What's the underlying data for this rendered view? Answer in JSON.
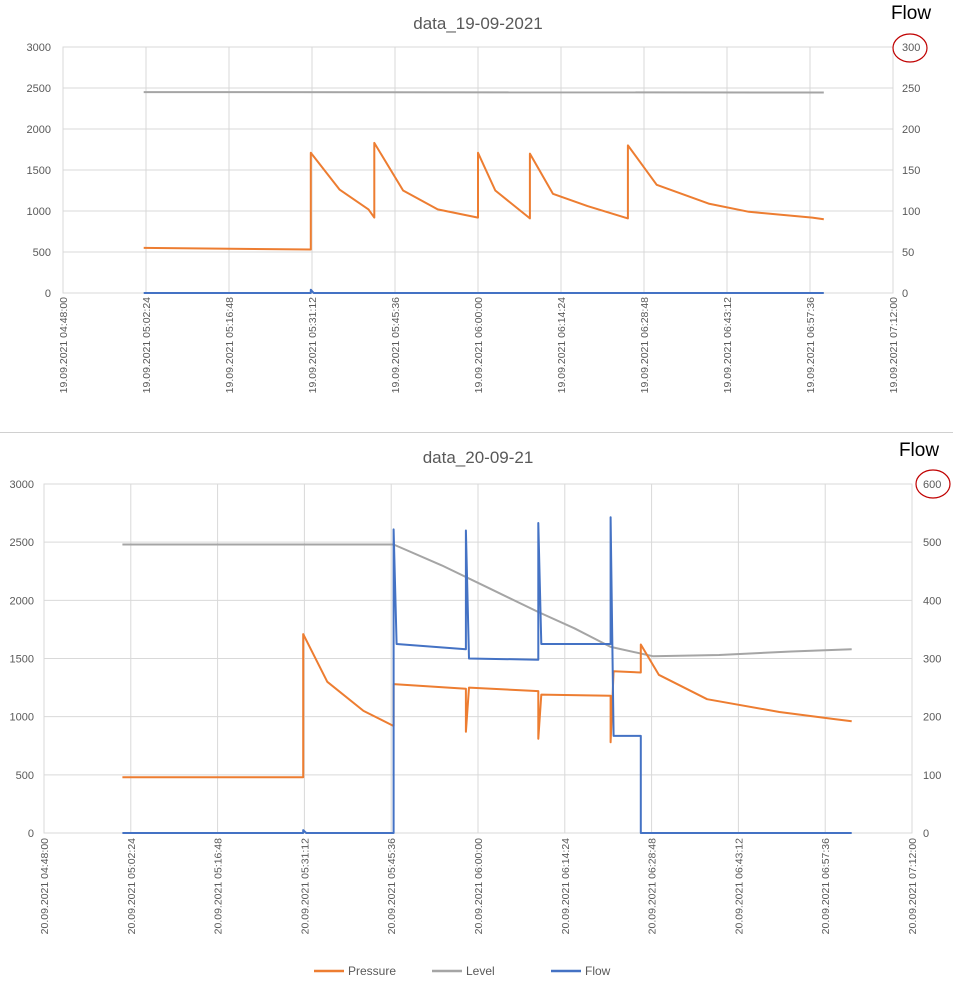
{
  "chart_data": [
    {
      "type": "line",
      "title": "data_19-09-2021",
      "right_axis_title": "Flow",
      "y_left": {
        "lim": [
          0,
          3000
        ],
        "ticks": [
          0,
          500,
          1000,
          1500,
          2000,
          2500,
          3000
        ]
      },
      "y_right": {
        "lim": [
          0,
          300
        ],
        "ticks": [
          0,
          50,
          100,
          150,
          200,
          250,
          300
        ]
      },
      "x_tick_labels": [
        "19.09.2021 04:48:00",
        "19.09.2021 05:02:24",
        "19.09.2021 05:16:48",
        "19.09.2021 05:31:12",
        "19.09.2021 05:45:36",
        "19.09.2021 06:00:00",
        "19.09.2021 06:14:24",
        "19.09.2021 06:28:48",
        "19.09.2021 06:43:12",
        "19.09.2021 06:57:36",
        "19.09.2021 07:12:00"
      ],
      "grid": true,
      "annotation": {
        "note": "red circle around top right axis tick",
        "tick": 300
      },
      "series": [
        {
          "name": "Pressure",
          "color": "#ED7D31",
          "axis": "left",
          "points": [
            [
              "19.09.2021 05:02:00",
              550
            ],
            [
              "19.09.2021 05:31:00",
              530
            ],
            [
              "19.09.2021 05:31:00",
              1710
            ],
            [
              "19.09.2021 05:36:00",
              1260
            ],
            [
              "19.09.2021 05:41:00",
              1020
            ],
            [
              "19.09.2021 05:42:00",
              920
            ],
            [
              "19.09.2021 05:42:00",
              1830
            ],
            [
              "19.09.2021 05:47:00",
              1250
            ],
            [
              "19.09.2021 05:53:00",
              1020
            ],
            [
              "19.09.2021 06:00:00",
              920
            ],
            [
              "19.09.2021 06:00:00",
              1710
            ],
            [
              "19.09.2021 06:03:00",
              1250
            ],
            [
              "19.09.2021 06:09:00",
              910
            ],
            [
              "19.09.2021 06:09:00",
              1700
            ],
            [
              "19.09.2021 06:13:00",
              1210
            ],
            [
              "19.09.2021 06:19:00",
              1060
            ],
            [
              "19.09.2021 06:26:00",
              910
            ],
            [
              "19.09.2021 06:26:00",
              1800
            ],
            [
              "19.09.2021 06:31:00",
              1320
            ],
            [
              "19.09.2021 06:40:00",
              1090
            ],
            [
              "19.09.2021 06:47:00",
              990
            ],
            [
              "19.09.2021 06:58:00",
              920
            ],
            [
              "19.09.2021 07:00:00",
              900
            ]
          ]
        },
        {
          "name": "Level",
          "color": "#A5A5A5",
          "axis": "left",
          "points": [
            [
              "19.09.2021 05:02:00",
              2450
            ],
            [
              "19.09.2021 07:00:00",
              2445
            ]
          ]
        },
        {
          "name": "Flow",
          "color": "#4472C4",
          "axis": "right",
          "points": [
            [
              "19.09.2021 05:02:00",
              0
            ],
            [
              "19.09.2021 05:31:00",
              0
            ],
            [
              "19.09.2021 05:31:00",
              4
            ],
            [
              "19.09.2021 05:31:30",
              0
            ],
            [
              "19.09.2021 07:00:00",
              0
            ]
          ]
        }
      ]
    },
    {
      "type": "line",
      "title": "data_20-09-21",
      "right_axis_title": "Flow",
      "y_left": {
        "lim": [
          0,
          3000
        ],
        "ticks": [
          0,
          500,
          1000,
          1500,
          2000,
          2500,
          3000
        ]
      },
      "y_right": {
        "lim": [
          0,
          600
        ],
        "ticks": [
          0,
          100,
          200,
          300,
          400,
          500,
          600
        ]
      },
      "x_tick_labels": [
        "20.09.2021 04:48:00",
        "20.09.2021 05:02:24",
        "20.09.2021 05:16:48",
        "20.09.2021 05:31:12",
        "20.09.2021 05:45:36",
        "20.09.2021 06:00:00",
        "20.09.2021 06:14:24",
        "20.09.2021 06:28:48",
        "20.09.2021 06:43:12",
        "20.09.2021 06:57:36",
        "20.09.2021 07:12:00"
      ],
      "grid": true,
      "annotation": {
        "note": "red circle around top right axis tick",
        "tick": 600
      },
      "legend": {
        "position": "bottom",
        "entries": [
          "Pressure",
          "Level",
          "Flow"
        ]
      },
      "series": [
        {
          "name": "Pressure",
          "color": "#ED7D31",
          "axis": "left",
          "points": [
            [
              "20.09.2021 05:01:00",
              480
            ],
            [
              "20.09.2021 05:31:00",
              480
            ],
            [
              "20.09.2021 05:31:00",
              1710
            ],
            [
              "20.09.2021 05:35:00",
              1300
            ],
            [
              "20.09.2021 05:41:00",
              1050
            ],
            [
              "20.09.2021 05:46:00",
              920
            ],
            [
              "20.09.2021 05:46:00",
              1280
            ],
            [
              "20.09.2021 05:58:00",
              1240
            ],
            [
              "20.09.2021 05:58:00",
              870
            ],
            [
              "20.09.2021 05:58:30",
              1250
            ],
            [
              "20.09.2021 06:10:00",
              1220
            ],
            [
              "20.09.2021 06:10:00",
              810
            ],
            [
              "20.09.2021 06:10:30",
              1190
            ],
            [
              "20.09.2021 06:22:00",
              1180
            ],
            [
              "20.09.2021 06:22:00",
              780
            ],
            [
              "20.09.2021 06:22:30",
              1390
            ],
            [
              "20.09.2021 06:27:00",
              1380
            ],
            [
              "20.09.2021 06:27:00",
              1620
            ],
            [
              "20.09.2021 06:30:00",
              1360
            ],
            [
              "20.09.2021 06:38:00",
              1150
            ],
            [
              "20.09.2021 06:50:00",
              1040
            ],
            [
              "20.09.2021 06:59:00",
              980
            ],
            [
              "20.09.2021 07:02:00",
              960
            ]
          ]
        },
        {
          "name": "Level",
          "color": "#A5A5A5",
          "axis": "left",
          "points": [
            [
              "20.09.2021 05:01:00",
              2480
            ],
            [
              "20.09.2021 05:46:00",
              2480
            ],
            [
              "20.09.2021 05:54:00",
              2300
            ],
            [
              "20.09.2021 06:02:00",
              2100
            ],
            [
              "20.09.2021 06:10:00",
              1900
            ],
            [
              "20.09.2021 06:16:00",
              1760
            ],
            [
              "20.09.2021 06:22:00",
              1600
            ],
            [
              "20.09.2021 06:29:00",
              1520
            ],
            [
              "20.09.2021 06:40:00",
              1530
            ],
            [
              "20.09.2021 06:52:00",
              1560
            ],
            [
              "20.09.2021 07:02:00",
              1580
            ]
          ]
        },
        {
          "name": "Flow",
          "color": "#4472C4",
          "axis": "right",
          "points": [
            [
              "20.09.2021 05:01:00",
              0
            ],
            [
              "20.09.2021 05:31:00",
              0
            ],
            [
              "20.09.2021 05:31:00",
              5
            ],
            [
              "20.09.2021 05:31:30",
              0
            ],
            [
              "20.09.2021 05:46:00",
              0
            ],
            [
              "20.09.2021 05:46:00",
              522
            ],
            [
              "20.09.2021 05:46:30",
              325
            ],
            [
              "20.09.2021 05:58:00",
              316
            ],
            [
              "20.09.2021 05:58:00",
              520
            ],
            [
              "20.09.2021 05:58:30",
              300
            ],
            [
              "20.09.2021 06:10:00",
              298
            ],
            [
              "20.09.2021 06:10:00",
              533
            ],
            [
              "20.09.2021 06:10:30",
              325
            ],
            [
              "20.09.2021 06:22:00",
              325
            ],
            [
              "20.09.2021 06:22:00",
              543
            ],
            [
              "20.09.2021 06:22:30",
              167
            ],
            [
              "20.09.2021 06:27:00",
              167
            ],
            [
              "20.09.2021 06:27:00",
              0
            ],
            [
              "20.09.2021 07:02:00",
              0
            ]
          ]
        }
      ]
    }
  ]
}
